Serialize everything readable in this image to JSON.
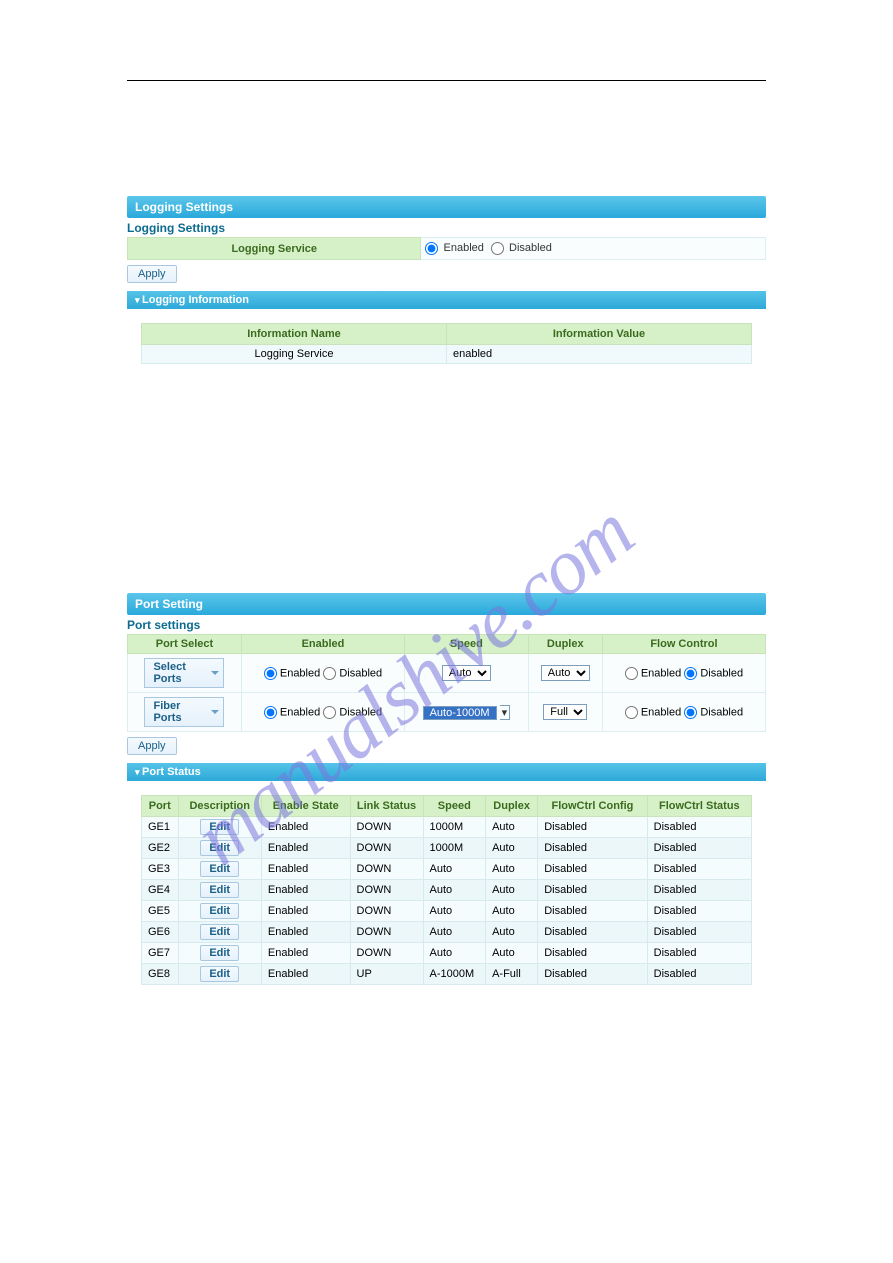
{
  "watermark_text": "manualshive.com",
  "logging": {
    "title_bar": "Logging Settings",
    "sub_heading": "Logging Settings",
    "service_label": "Logging Service",
    "radio_enabled": "Enabled",
    "radio_disabled": "Disabled",
    "apply_label": "Apply",
    "info_bar": "Logging Information",
    "info_col_name": "Information Name",
    "info_col_value": "Information Value",
    "info_row_name": "Logging Service",
    "info_row_value": "enabled"
  },
  "port": {
    "title_bar": "Port Setting",
    "sub_heading": "Port settings",
    "col_port_select": "Port Select",
    "col_enabled": "Enabled",
    "col_speed": "Speed",
    "col_duplex": "Duplex",
    "col_flow": "Flow Control",
    "row1_portsel": "Select Ports",
    "row1_speed": "Auto",
    "row1_duplex": "Auto",
    "row2_portsel": "Fiber Ports",
    "row2_speed": "Auto-1000M",
    "row2_duplex": "Full",
    "radio_enabled": "Enabled",
    "radio_disabled": "Disabled",
    "apply_label": "Apply",
    "status_bar": "Port Status",
    "st_col_port": "Port",
    "st_col_desc": "Description",
    "st_col_enable": "Enable State",
    "st_col_link": "Link Status",
    "st_col_speed": "Speed",
    "st_col_duplex": "Duplex",
    "st_col_cfg": "FlowCtrl Config",
    "st_col_status": "FlowCtrl Status",
    "edit_label": "Edit",
    "rows": [
      {
        "port": "GE1",
        "enable": "Enabled",
        "link": "DOWN",
        "speed": "1000M",
        "duplex": "Auto",
        "cfg": "Disabled",
        "status": "Disabled"
      },
      {
        "port": "GE2",
        "enable": "Enabled",
        "link": "DOWN",
        "speed": "1000M",
        "duplex": "Auto",
        "cfg": "Disabled",
        "status": "Disabled"
      },
      {
        "port": "GE3",
        "enable": "Enabled",
        "link": "DOWN",
        "speed": "Auto",
        "duplex": "Auto",
        "cfg": "Disabled",
        "status": "Disabled"
      },
      {
        "port": "GE4",
        "enable": "Enabled",
        "link": "DOWN",
        "speed": "Auto",
        "duplex": "Auto",
        "cfg": "Disabled",
        "status": "Disabled"
      },
      {
        "port": "GE5",
        "enable": "Enabled",
        "link": "DOWN",
        "speed": "Auto",
        "duplex": "Auto",
        "cfg": "Disabled",
        "status": "Disabled"
      },
      {
        "port": "GE6",
        "enable": "Enabled",
        "link": "DOWN",
        "speed": "Auto",
        "duplex": "Auto",
        "cfg": "Disabled",
        "status": "Disabled"
      },
      {
        "port": "GE7",
        "enable": "Enabled",
        "link": "DOWN",
        "speed": "Auto",
        "duplex": "Auto",
        "cfg": "Disabled",
        "status": "Disabled"
      },
      {
        "port": "GE8",
        "enable": "Enabled",
        "link": "UP",
        "speed": "A-1000M",
        "duplex": "A-Full",
        "cfg": "Disabled",
        "status": "Disabled"
      }
    ],
    "col_widths": {
      "port": 30,
      "desc": 80,
      "enable": 85,
      "link": 70,
      "speed": 60,
      "duplex": 50,
      "cfg": 105,
      "status": 100
    }
  },
  "colors": {
    "bar_grad_top": "#5cc6ea",
    "bar_grad_bot": "#29a9db",
    "header_bg": "#d6f0c8",
    "header_fg": "#3b6b1f",
    "cell_border": "#d7eaee",
    "btn_border": "#a9c7df",
    "btn_fg": "#1b5f87",
    "watermark_color": "rgba(122,119,220,0.55)"
  }
}
